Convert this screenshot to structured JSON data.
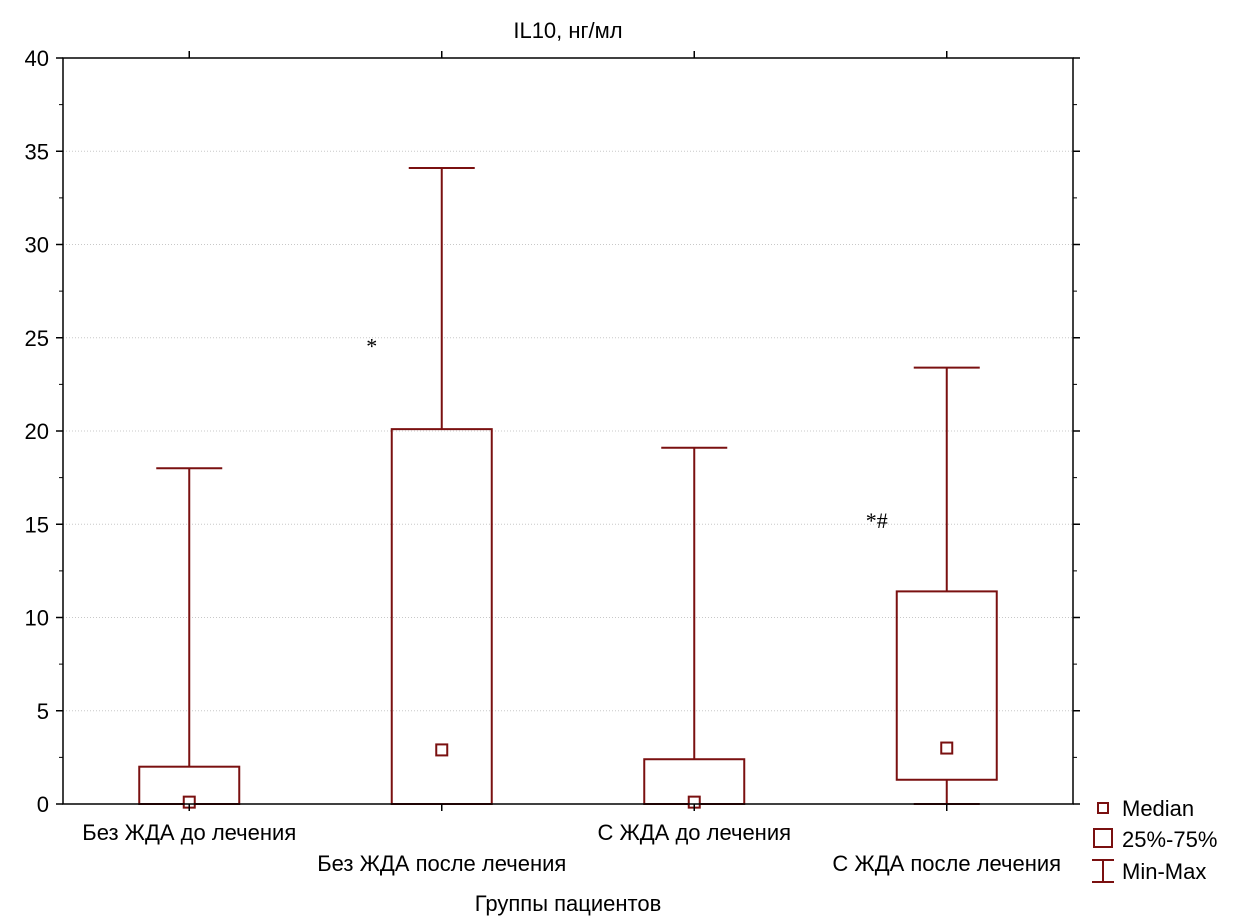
{
  "chart_data": {
    "type": "box",
    "title": "IL10, нг/мл",
    "xlabel": "Группы пациентов",
    "ylabel": "",
    "ylim": [
      0,
      40
    ],
    "yticks": [
      0,
      5,
      10,
      15,
      20,
      25,
      30,
      35,
      40
    ],
    "grid": true,
    "color": "#7a1010",
    "categories": [
      "Без ЖДА до лечения",
      "Без ЖДА после лечения",
      "С ЖДА до лечения",
      "С ЖДА после лечения"
    ],
    "series": [
      {
        "min": 0,
        "q1": 0,
        "median": 0.1,
        "q3": 2.0,
        "max": 18.0,
        "annotation": ""
      },
      {
        "min": 0,
        "q1": 0,
        "median": 2.9,
        "q3": 20.1,
        "max": 34.1,
        "annotation": "*"
      },
      {
        "min": 0,
        "q1": 0,
        "median": 0.1,
        "q3": 2.4,
        "max": 19.1,
        "annotation": ""
      },
      {
        "min": 0,
        "q1": 1.3,
        "median": 3.0,
        "q3": 11.4,
        "max": 23.4,
        "annotation": "*#"
      }
    ],
    "legend": {
      "placement": "bottom-right",
      "items": [
        "Median",
        "25%-75%",
        "Min-Max"
      ]
    }
  }
}
